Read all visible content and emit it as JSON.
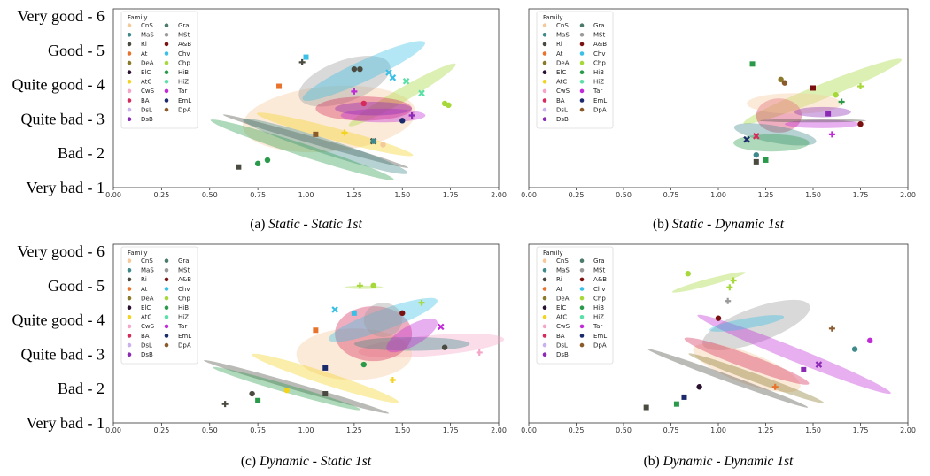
{
  "legend_title": "Family",
  "families": [
    {
      "code": "CnS",
      "color": "#f6c99a"
    },
    {
      "code": "MaS",
      "color": "#3e8a8a"
    },
    {
      "code": "Ri",
      "color": "#4a4a40"
    },
    {
      "code": "At",
      "color": "#e8732c"
    },
    {
      "code": "DeA",
      "color": "#8a7a2a"
    },
    {
      "code": "ElC",
      "color": "#2a1030"
    },
    {
      "code": "AtC",
      "color": "#f2d31f"
    },
    {
      "code": "CwS",
      "color": "#f4a6c8"
    },
    {
      "code": "BA",
      "color": "#d62a5a"
    },
    {
      "code": "DsL",
      "color": "#c9b2ee"
    },
    {
      "code": "DsB",
      "color": "#8a2ab5"
    },
    {
      "code": "Gra",
      "color": "#4a7a6a"
    },
    {
      "code": "MSt",
      "color": "#9a9a9a"
    },
    {
      "code": "A&B",
      "color": "#7a1010"
    },
    {
      "code": "Chv",
      "color": "#3ac0e6"
    },
    {
      "code": "Chp",
      "color": "#a6d83a"
    },
    {
      "code": "HiB",
      "color": "#2a9a4a"
    },
    {
      "code": "HiZ",
      "color": "#5ae0a6"
    },
    {
      "code": "Tar",
      "color": "#c02ad8"
    },
    {
      "code": "EmL",
      "color": "#1a2a6a"
    },
    {
      "code": "DpA",
      "color": "#8a5a2a"
    }
  ],
  "chart_data": [
    {
      "type": "scatter",
      "caption_prefix": "(a) ",
      "caption_italic": "Static - Static 1st",
      "x_ticks": [
        "0.00",
        "0.25",
        "0.50",
        "0.75",
        "1.00",
        "1.25",
        "1.50",
        "1.75",
        "2.00"
      ],
      "y_ticks": [
        "Very bad - 1",
        "Bad - 2",
        "Quite bad - 3",
        "Quite good - 4",
        "Good - 5",
        "Very good - 6"
      ],
      "xlim": [
        0,
        2
      ],
      "ylim": [
        1,
        6
      ],
      "ellipses": [
        {
          "family": "CnS",
          "cx": 1.12,
          "cy": 3.0,
          "rx": 0.45,
          "ry": 0.95,
          "angle": -5
        },
        {
          "family": "Ri",
          "cx": 1.05,
          "cy": 2.35,
          "rx": 0.5,
          "ry": 0.1,
          "angle": 16
        },
        {
          "family": "AtC",
          "cx": 1.15,
          "cy": 2.55,
          "rx": 0.42,
          "ry": 0.18,
          "angle": 15
        },
        {
          "family": "MaS",
          "cx": 1.1,
          "cy": 2.2,
          "rx": 0.45,
          "ry": 0.22,
          "angle": 18
        },
        {
          "family": "HiB",
          "cx": 0.98,
          "cy": 2.1,
          "rx": 0.5,
          "ry": 0.18,
          "angle": 18
        },
        {
          "family": "MSt",
          "cx": 1.2,
          "cy": 4.1,
          "rx": 0.25,
          "ry": 0.6,
          "angle": -20
        },
        {
          "family": "Chv",
          "cx": 1.3,
          "cy": 4.4,
          "rx": 0.35,
          "ry": 0.3,
          "angle": -25
        },
        {
          "family": "Chp",
          "cx": 1.5,
          "cy": 3.7,
          "rx": 0.32,
          "ry": 0.2,
          "angle": -30
        },
        {
          "family": "BA",
          "cx": 1.3,
          "cy": 3.3,
          "rx": 0.25,
          "ry": 0.35,
          "angle": 0
        },
        {
          "family": "Tar",
          "cx": 1.4,
          "cy": 3.1,
          "rx": 0.22,
          "ry": 0.2,
          "angle": 0
        },
        {
          "family": "DsB",
          "cx": 1.35,
          "cy": 3.3,
          "rx": 0.2,
          "ry": 0.2,
          "angle": 0
        }
      ],
      "points": [
        {
          "family": "Ri",
          "x": 0.65,
          "y": 1.6,
          "m": "square"
        },
        {
          "family": "HiB",
          "x": 0.75,
          "y": 1.7,
          "m": "circle"
        },
        {
          "family": "HiB",
          "x": 0.8,
          "y": 1.8,
          "m": "circle"
        },
        {
          "family": "At",
          "x": 0.86,
          "y": 3.95,
          "m": "square"
        },
        {
          "family": "Chv",
          "x": 1.0,
          "y": 4.8,
          "m": "square"
        },
        {
          "family": "Ri",
          "x": 0.98,
          "y": 4.65,
          "m": "plus"
        },
        {
          "family": "Ri",
          "x": 1.25,
          "y": 4.45,
          "m": "circle"
        },
        {
          "family": "Ri",
          "x": 1.28,
          "y": 4.45,
          "m": "circle"
        },
        {
          "family": "Chv",
          "x": 1.43,
          "y": 4.35,
          "m": "x"
        },
        {
          "family": "Chv",
          "x": 1.45,
          "y": 4.2,
          "m": "x"
        },
        {
          "family": "HiZ",
          "x": 1.52,
          "y": 4.1,
          "m": "x"
        },
        {
          "family": "HiZ",
          "x": 1.6,
          "y": 3.75,
          "m": "x"
        },
        {
          "family": "Chp",
          "x": 1.72,
          "y": 3.45,
          "m": "circle"
        },
        {
          "family": "Chp",
          "x": 1.74,
          "y": 3.4,
          "m": "circle"
        },
        {
          "family": "Tar",
          "x": 1.25,
          "y": 3.8,
          "m": "plus"
        },
        {
          "family": "BA",
          "x": 1.3,
          "y": 3.45,
          "m": "circle"
        },
        {
          "family": "DsB",
          "x": 1.55,
          "y": 3.1,
          "m": "plus"
        },
        {
          "family": "EmL",
          "x": 1.5,
          "y": 2.95,
          "m": "circle"
        },
        {
          "family": "DpA",
          "x": 1.05,
          "y": 2.55,
          "m": "square"
        },
        {
          "family": "CnS",
          "x": 1.4,
          "y": 2.25,
          "m": "circle"
        },
        {
          "family": "Ri",
          "x": 1.35,
          "y": 2.35,
          "m": "x"
        },
        {
          "family": "AtC",
          "x": 1.2,
          "y": 2.6,
          "m": "plus"
        },
        {
          "family": "MaS",
          "x": 1.35,
          "y": 2.35,
          "m": "circle"
        }
      ]
    },
    {
      "type": "scatter",
      "caption_prefix": "(b) ",
      "caption_italic": "Static - Dynamic 1st",
      "x_ticks": [
        "0.00",
        "0.25",
        "0.50",
        "0.75",
        "1.00",
        "1.25",
        "1.50",
        "1.75",
        "2.00"
      ],
      "y_ticks": [],
      "xlim": [
        0,
        2
      ],
      "ylim": [
        1,
        6
      ],
      "ellipses": [
        {
          "family": "Chp",
          "cx": 1.55,
          "cy": 3.8,
          "rx": 0.45,
          "ry": 0.22,
          "angle": -22
        },
        {
          "family": "BA",
          "cx": 1.32,
          "cy": 3.1,
          "rx": 0.12,
          "ry": 0.5,
          "angle": 0
        },
        {
          "family": "MaS",
          "cx": 1.3,
          "cy": 2.55,
          "rx": 0.22,
          "ry": 0.25,
          "angle": 10
        },
        {
          "family": "HiB",
          "cx": 1.28,
          "cy": 2.3,
          "rx": 0.2,
          "ry": 0.25,
          "angle": 0
        },
        {
          "family": "Tar",
          "cx": 1.55,
          "cy": 2.85,
          "rx": 0.2,
          "ry": 0.12,
          "angle": 0
        },
        {
          "family": "Ri",
          "cx": 1.5,
          "cy": 2.95,
          "rx": 0.28,
          "ry": 0.05,
          "angle": 0
        },
        {
          "family": "CnS",
          "cx": 1.4,
          "cy": 3.45,
          "rx": 0.25,
          "ry": 0.3,
          "angle": 0
        },
        {
          "family": "DsB",
          "cx": 1.55,
          "cy": 3.2,
          "rx": 0.15,
          "ry": 0.15,
          "angle": 0
        }
      ],
      "points": [
        {
          "family": "HiB",
          "x": 1.18,
          "y": 4.6,
          "m": "square"
        },
        {
          "family": "DeA",
          "x": 1.33,
          "y": 4.15,
          "m": "circle"
        },
        {
          "family": "DpA",
          "x": 1.35,
          "y": 4.05,
          "m": "circle"
        },
        {
          "family": "Chp",
          "x": 1.75,
          "y": 3.95,
          "m": "plus"
        },
        {
          "family": "Chp",
          "x": 1.62,
          "y": 3.7,
          "m": "circle"
        },
        {
          "family": "HiB",
          "x": 1.65,
          "y": 3.5,
          "m": "plus"
        },
        {
          "family": "A&B",
          "x": 1.5,
          "y": 3.9,
          "m": "square"
        },
        {
          "family": "A&B",
          "x": 1.75,
          "y": 2.85,
          "m": "circle"
        },
        {
          "family": "Tar",
          "x": 1.6,
          "y": 2.55,
          "m": "plus"
        },
        {
          "family": "DsB",
          "x": 1.58,
          "y": 3.15,
          "m": "square"
        },
        {
          "family": "EmL",
          "x": 1.15,
          "y": 2.4,
          "m": "x"
        },
        {
          "family": "BA",
          "x": 1.2,
          "y": 2.5,
          "m": "x"
        },
        {
          "family": "Ri",
          "x": 1.2,
          "y": 1.75,
          "m": "square"
        },
        {
          "family": "HiB",
          "x": 1.25,
          "y": 1.8,
          "m": "square"
        },
        {
          "family": "MaS",
          "x": 1.2,
          "y": 1.95,
          "m": "circle"
        }
      ]
    },
    {
      "type": "scatter",
      "caption_prefix": "(c) ",
      "caption_italic": "Dynamic - Static 1st",
      "x_ticks": [
        "0.00",
        "0.25",
        "0.50",
        "0.75",
        "1.00",
        "1.25",
        "1.50",
        "1.75",
        "2.00"
      ],
      "y_ticks": [
        "Very bad - 1",
        "Bad - 2",
        "Quite bad - 3",
        "Quite good - 4",
        "Good - 5",
        "Very good - 6"
      ],
      "xlim": [
        0,
        2
      ],
      "ylim": [
        1,
        6
      ],
      "ellipses": [
        {
          "family": "CwS",
          "cx": 1.65,
          "cy": 3.25,
          "rx": 0.38,
          "ry": 0.3,
          "angle": -5
        },
        {
          "family": "CnS",
          "cx": 1.25,
          "cy": 3.0,
          "rx": 0.3,
          "ry": 0.75,
          "angle": 0
        },
        {
          "family": "BA",
          "cx": 1.35,
          "cy": 3.6,
          "rx": 0.2,
          "ry": 0.8,
          "angle": 0
        },
        {
          "family": "Chv",
          "cx": 1.4,
          "cy": 4.0,
          "rx": 0.3,
          "ry": 0.3,
          "angle": -20
        },
        {
          "family": "MaS",
          "cx": 1.55,
          "cy": 3.3,
          "rx": 0.3,
          "ry": 0.2,
          "angle": 0
        },
        {
          "family": "Ri",
          "cx": 0.95,
          "cy": 2.05,
          "rx": 0.5,
          "ry": 0.1,
          "angle": 16
        },
        {
          "family": "AtC",
          "cx": 1.1,
          "cy": 2.3,
          "rx": 0.4,
          "ry": 0.18,
          "angle": 18
        },
        {
          "family": "HiB",
          "cx": 0.9,
          "cy": 2.0,
          "rx": 0.4,
          "ry": 0.12,
          "angle": 16
        },
        {
          "family": "Chp",
          "cx": 1.3,
          "cy": 4.95,
          "rx": 0.1,
          "ry": 0.05,
          "angle": 0
        },
        {
          "family": "Tar",
          "cx": 1.55,
          "cy": 3.55,
          "rx": 0.15,
          "ry": 0.3,
          "angle": -30
        },
        {
          "family": "MSt",
          "cx": 1.4,
          "cy": 4.0,
          "rx": 0.1,
          "ry": 0.5,
          "angle": 0
        }
      ],
      "points": [
        {
          "family": "Ri",
          "x": 0.58,
          "y": 1.55,
          "m": "plus"
        },
        {
          "family": "Ri",
          "x": 0.72,
          "y": 1.85,
          "m": "circle"
        },
        {
          "family": "HiB",
          "x": 0.75,
          "y": 1.65,
          "m": "square"
        },
        {
          "family": "AtC",
          "x": 0.9,
          "y": 1.95,
          "m": "circle"
        },
        {
          "family": "Ri",
          "x": 1.1,
          "y": 1.85,
          "m": "square"
        },
        {
          "family": "At",
          "x": 1.05,
          "y": 3.7,
          "m": "square"
        },
        {
          "family": "Chv",
          "x": 1.15,
          "y": 4.3,
          "m": "x"
        },
        {
          "family": "Chv",
          "x": 1.25,
          "y": 4.2,
          "m": "square"
        },
        {
          "family": "Chp",
          "x": 1.35,
          "y": 5.0,
          "m": "circle"
        },
        {
          "family": "Chp",
          "x": 1.28,
          "y": 5.0,
          "m": "plus"
        },
        {
          "family": "Chp",
          "x": 1.6,
          "y": 4.5,
          "m": "plus"
        },
        {
          "family": "A&B",
          "x": 1.5,
          "y": 4.2,
          "m": "circle"
        },
        {
          "family": "Tar",
          "x": 1.7,
          "y": 3.8,
          "m": "x"
        },
        {
          "family": "CwS",
          "x": 1.9,
          "y": 3.05,
          "m": "plus"
        },
        {
          "family": "Ri",
          "x": 1.72,
          "y": 3.2,
          "m": "circle"
        },
        {
          "family": "AtC",
          "x": 1.45,
          "y": 2.25,
          "m": "plus"
        },
        {
          "family": "EmL",
          "x": 1.1,
          "y": 2.6,
          "m": "square"
        },
        {
          "family": "HiB",
          "x": 1.3,
          "y": 2.7,
          "m": "circle"
        }
      ]
    },
    {
      "type": "scatter",
      "caption_prefix": "(b) ",
      "caption_italic": "Dynamic - Dynamic 1st",
      "x_ticks": [
        "0.00",
        "0.25",
        "0.50",
        "0.75",
        "1.00",
        "1.25",
        "1.50",
        "1.75",
        "2.00"
      ],
      "y_ticks": [],
      "xlim": [
        0,
        2
      ],
      "ylim": [
        1,
        6
      ],
      "ellipses": [
        {
          "family": "Chp",
          "cx": 0.95,
          "cy": 5.1,
          "rx": 0.2,
          "ry": 0.1,
          "angle": -15
        },
        {
          "family": "MSt",
          "cx": 1.2,
          "cy": 3.85,
          "rx": 0.3,
          "ry": 0.5,
          "angle": -20
        },
        {
          "family": "Tar",
          "cx": 1.4,
          "cy": 3.0,
          "rx": 0.55,
          "ry": 0.2,
          "angle": 22
        },
        {
          "family": "CnS",
          "cx": 1.15,
          "cy": 2.6,
          "rx": 0.3,
          "ry": 0.45,
          "angle": 20
        },
        {
          "family": "Ri",
          "cx": 1.05,
          "cy": 2.3,
          "rx": 0.45,
          "ry": 0.1,
          "angle": 20
        },
        {
          "family": "BA",
          "cx": 1.15,
          "cy": 2.8,
          "rx": 0.35,
          "ry": 0.2,
          "angle": 20
        },
        {
          "family": "Chv",
          "cx": 1.15,
          "cy": 3.9,
          "rx": 0.2,
          "ry": 0.15,
          "angle": -10
        },
        {
          "family": "DeA",
          "cx": 1.2,
          "cy": 2.3,
          "rx": 0.38,
          "ry": 0.12,
          "angle": 20
        }
      ],
      "points": [
        {
          "family": "Chp",
          "x": 0.84,
          "y": 5.35,
          "m": "circle"
        },
        {
          "family": "Chp",
          "x": 1.08,
          "y": 5.15,
          "m": "plus"
        },
        {
          "family": "Chp",
          "x": 1.06,
          "y": 4.95,
          "m": "plus"
        },
        {
          "family": "MSt",
          "x": 1.05,
          "y": 4.55,
          "m": "plus"
        },
        {
          "family": "A&B",
          "x": 1.0,
          "y": 4.05,
          "m": "circle"
        },
        {
          "family": "Tar",
          "x": 1.8,
          "y": 3.4,
          "m": "circle"
        },
        {
          "family": "MaS",
          "x": 1.72,
          "y": 3.15,
          "m": "circle"
        },
        {
          "family": "DsB",
          "x": 1.53,
          "y": 2.7,
          "m": "x"
        },
        {
          "family": "Ri",
          "x": 0.62,
          "y": 1.45,
          "m": "square"
        },
        {
          "family": "HiB",
          "x": 0.78,
          "y": 1.55,
          "m": "square"
        },
        {
          "family": "EmL",
          "x": 0.82,
          "y": 1.75,
          "m": "square"
        },
        {
          "family": "ElC",
          "x": 0.9,
          "y": 2.05,
          "m": "circle"
        },
        {
          "family": "At",
          "x": 1.3,
          "y": 2.05,
          "m": "plus"
        },
        {
          "family": "DpA",
          "x": 1.6,
          "y": 3.75,
          "m": "plus"
        },
        {
          "family": "DsB",
          "x": 1.45,
          "y": 2.55,
          "m": "square"
        }
      ]
    }
  ]
}
